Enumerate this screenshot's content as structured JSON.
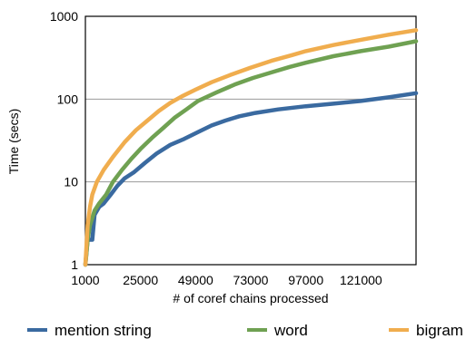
{
  "chart_data": {
    "type": "line",
    "xlabel": "# of coref chains processed",
    "ylabel": "Time (secs)",
    "y_scale": "log",
    "ylim": [
      1,
      1000
    ],
    "xlim": [
      1000,
      145000
    ],
    "x_ticks": [
      1000,
      25000,
      49000,
      73000,
      97000,
      121000
    ],
    "x_tick_labels": [
      "1000",
      "25000",
      "49000",
      "73000",
      "97000",
      "121000"
    ],
    "y_ticks": [
      1,
      10,
      100,
      1000
    ],
    "y_tick_labels": [
      "1",
      "10",
      "100",
      "1000"
    ],
    "grid": "horizontal",
    "legend_position": "bottom",
    "series": [
      {
        "name": "mention string",
        "color": "#3a6aa0",
        "points": [
          [
            1000,
            1
          ],
          [
            2000,
            2
          ],
          [
            4000,
            2
          ],
          [
            5000,
            4
          ],
          [
            7000,
            5
          ],
          [
            9000,
            5.5
          ],
          [
            12000,
            7
          ],
          [
            15000,
            9
          ],
          [
            18000,
            11
          ],
          [
            22000,
            13
          ],
          [
            27000,
            17
          ],
          [
            32000,
            22
          ],
          [
            38000,
            28
          ],
          [
            44000,
            33
          ],
          [
            50000,
            40
          ],
          [
            56000,
            48
          ],
          [
            62000,
            55
          ],
          [
            68000,
            62
          ],
          [
            75000,
            68
          ],
          [
            85000,
            75
          ],
          [
            97000,
            82
          ],
          [
            109000,
            88
          ],
          [
            121000,
            95
          ],
          [
            133000,
            105
          ],
          [
            145000,
            118
          ]
        ]
      },
      {
        "name": "word",
        "color": "#6fa152",
        "points": [
          [
            1000,
            1
          ],
          [
            2000,
            2
          ],
          [
            3000,
            3
          ],
          [
            5000,
            4.5
          ],
          [
            7000,
            5.5
          ],
          [
            10000,
            7
          ],
          [
            13000,
            10
          ],
          [
            17000,
            14
          ],
          [
            21000,
            19
          ],
          [
            25000,
            25
          ],
          [
            30000,
            34
          ],
          [
            35000,
            45
          ],
          [
            40000,
            60
          ],
          [
            45000,
            75
          ],
          [
            50000,
            95
          ],
          [
            58000,
            120
          ],
          [
            66000,
            150
          ],
          [
            74000,
            180
          ],
          [
            82000,
            210
          ],
          [
            90000,
            245
          ],
          [
            97000,
            275
          ],
          [
            109000,
            330
          ],
          [
            121000,
            380
          ],
          [
            133000,
            430
          ],
          [
            145000,
            500
          ]
        ]
      },
      {
        "name": "bigram",
        "color": "#f0ad4e",
        "points": [
          [
            1000,
            1
          ],
          [
            2000,
            3
          ],
          [
            3000,
            5
          ],
          [
            4000,
            7
          ],
          [
            6000,
            10
          ],
          [
            9000,
            14
          ],
          [
            13000,
            20
          ],
          [
            18000,
            30
          ],
          [
            23000,
            42
          ],
          [
            28000,
            55
          ],
          [
            33000,
            72
          ],
          [
            38000,
            90
          ],
          [
            43000,
            108
          ],
          [
            49000,
            130
          ],
          [
            56000,
            160
          ],
          [
            64000,
            195
          ],
          [
            73000,
            240
          ],
          [
            82000,
            290
          ],
          [
            91000,
            340
          ],
          [
            97000,
            380
          ],
          [
            109000,
            450
          ],
          [
            121000,
            520
          ],
          [
            133000,
            600
          ],
          [
            145000,
            680
          ]
        ]
      }
    ]
  }
}
